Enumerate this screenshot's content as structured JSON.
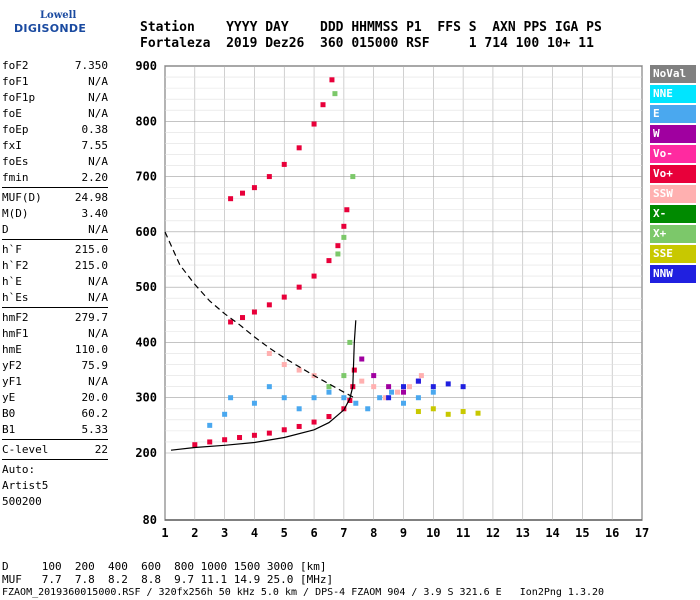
{
  "logo": {
    "line1": "Lowell",
    "line2": "DIGISONDE"
  },
  "header": {
    "labels": "Station    YYYY DAY    DDD HHMMSS P1  FFS S  AXN PPS IGA PS",
    "values": "Fortaleza  2019 Dez26  360 015000 RSF     1 714 100 10+ 11"
  },
  "params": [
    {
      "name": "foF2",
      "value": "7.350"
    },
    {
      "name": "foF1",
      "value": "N/A"
    },
    {
      "name": "foF1p",
      "value": "N/A"
    },
    {
      "name": "foE",
      "value": "N/A"
    },
    {
      "name": "foEp",
      "value": "0.38"
    },
    {
      "name": "fxI",
      "value": "7.55"
    },
    {
      "name": "foEs",
      "value": "N/A"
    },
    {
      "name": "fmin",
      "value": "2.20"
    },
    {
      "sep": true
    },
    {
      "name": "MUF(D)",
      "value": "24.98"
    },
    {
      "name": "M(D)",
      "value": "3.40"
    },
    {
      "name": "D",
      "value": "N/A"
    },
    {
      "sep": true
    },
    {
      "name": "h`F",
      "value": "215.0"
    },
    {
      "name": "h`F2",
      "value": "215.0"
    },
    {
      "name": "h`E",
      "value": "N/A"
    },
    {
      "name": "h`Es",
      "value": "N/A"
    },
    {
      "sep": true
    },
    {
      "name": "hmF2",
      "value": "279.7"
    },
    {
      "name": "hmF1",
      "value": "N/A"
    },
    {
      "name": "hmE",
      "value": "110.0"
    },
    {
      "name": "yF2",
      "value": "75.9"
    },
    {
      "name": "yF1",
      "value": "N/A"
    },
    {
      "name": "yE",
      "value": "20.0"
    },
    {
      "name": "B0",
      "value": "60.2"
    },
    {
      "name": "B1",
      "value": "5.33"
    },
    {
      "sep": true
    },
    {
      "name": "C-level",
      "value": "22"
    },
    {
      "sep": true
    },
    {
      "plain": "Auto:"
    },
    {
      "plain": "Artist5"
    },
    {
      "plain": "500200"
    }
  ],
  "legend": [
    {
      "label": "NoVal",
      "color": "#808080"
    },
    {
      "label": "NNE",
      "color": "#00e5ff"
    },
    {
      "label": "E",
      "color": "#4aa8ef"
    },
    {
      "label": "W",
      "color": "#a000a0"
    },
    {
      "label": "Vo-",
      "color": "#ff2aa0"
    },
    {
      "label": "Vo+",
      "color": "#e8003a"
    },
    {
      "label": "SSW",
      "color": "#ffb0b0"
    },
    {
      "label": "X-",
      "color": "#008a00"
    },
    {
      "label": "X+",
      "color": "#7cc86a"
    },
    {
      "label": "SSE",
      "color": "#c8c800"
    },
    {
      "label": "NNW",
      "color": "#2020e0"
    }
  ],
  "footer": {
    "line1": "D     100  200  400  600  800 1000 1500 3000 [km]",
    "line2": "MUF   7.7  7.8  8.2  8.8  9.7 11.1 14.9 25.0 [MHz]",
    "line3": "FZAOM_2019360015000.RSF / 320fx256h 50 kHz 5.0 km / DPS-4 FZAOM 904 / 3.9 S 321.6 E   Ion2Png 1.3.20"
  },
  "chart_data": {
    "type": "scatter",
    "xlim": [
      1,
      17
    ],
    "ylim": [
      80,
      900
    ],
    "xticks": [
      1,
      2,
      3,
      4,
      5,
      6,
      7,
      8,
      9,
      10,
      11,
      12,
      13,
      14,
      15,
      16,
      17
    ],
    "yticks": [
      80,
      200,
      300,
      400,
      500,
      600,
      700,
      800,
      900
    ],
    "grid": true,
    "series": [
      {
        "color": "#e8003a",
        "points": [
          [
            2,
            215
          ],
          [
            2.5,
            220
          ],
          [
            3,
            224
          ],
          [
            3.5,
            228
          ],
          [
            4,
            232
          ],
          [
            4.5,
            236
          ],
          [
            5,
            242
          ],
          [
            5.5,
            248
          ],
          [
            6,
            256
          ],
          [
            6.5,
            266
          ],
          [
            7,
            280
          ],
          [
            7.2,
            295
          ],
          [
            7.3,
            320
          ],
          [
            7.35,
            350
          ]
        ]
      },
      {
        "color": "#e8003a",
        "points": [
          [
            3.2,
            437
          ],
          [
            3.6,
            445
          ],
          [
            4,
            455
          ],
          [
            4.5,
            468
          ],
          [
            5,
            482
          ],
          [
            5.5,
            500
          ],
          [
            6,
            520
          ],
          [
            6.5,
            548
          ],
          [
            6.8,
            575
          ],
          [
            7,
            610
          ],
          [
            7.1,
            640
          ]
        ]
      },
      {
        "color": "#e8003a",
        "points": [
          [
            3.2,
            660
          ],
          [
            3.6,
            670
          ],
          [
            4,
            680
          ],
          [
            4.5,
            700
          ],
          [
            5,
            722
          ],
          [
            5.5,
            752
          ],
          [
            6,
            795
          ],
          [
            6.3,
            830
          ],
          [
            6.6,
            875
          ]
        ]
      },
      {
        "color": "#4aa8ef",
        "points": [
          [
            2.5,
            250
          ],
          [
            3,
            270
          ],
          [
            3.2,
            300
          ],
          [
            4,
            290
          ],
          [
            4.5,
            320
          ],
          [
            5,
            300
          ],
          [
            5.5,
            280
          ],
          [
            6,
            300
          ],
          [
            6.5,
            310
          ],
          [
            7,
            300
          ],
          [
            7.4,
            290
          ],
          [
            7.8,
            280
          ],
          [
            8.2,
            300
          ],
          [
            8.6,
            310
          ],
          [
            9,
            290
          ],
          [
            9.5,
            300
          ],
          [
            10,
            310
          ]
        ]
      },
      {
        "color": "#ffb0b0",
        "points": [
          [
            4.5,
            380
          ],
          [
            5,
            360
          ],
          [
            5.5,
            350
          ],
          [
            6,
            340
          ],
          [
            7.6,
            330
          ],
          [
            8,
            320
          ],
          [
            8.4,
            300
          ],
          [
            8.8,
            310
          ],
          [
            9.2,
            320
          ],
          [
            9.6,
            340
          ]
        ]
      },
      {
        "color": "#a000a0",
        "points": [
          [
            7.6,
            370
          ],
          [
            8,
            340
          ],
          [
            8.5,
            320
          ],
          [
            9,
            310
          ],
          [
            9.5,
            330
          ]
        ]
      },
      {
        "color": "#2020e0",
        "points": [
          [
            8.5,
            300
          ],
          [
            9,
            320
          ],
          [
            9.5,
            330
          ],
          [
            10,
            320
          ],
          [
            10.5,
            325
          ],
          [
            11,
            320
          ]
        ]
      },
      {
        "color": "#c8c800",
        "points": [
          [
            9.5,
            275
          ],
          [
            10,
            280
          ],
          [
            10.5,
            270
          ],
          [
            11,
            275
          ],
          [
            11.5,
            272
          ]
        ]
      },
      {
        "color": "#7cc86a",
        "points": [
          [
            6.5,
            320
          ],
          [
            7,
            340
          ],
          [
            7.2,
            400
          ],
          [
            6.8,
            560
          ],
          [
            7,
            590
          ],
          [
            7.3,
            700
          ],
          [
            6.7,
            850
          ]
        ]
      }
    ],
    "lines": [
      {
        "style": "dashed",
        "points": [
          [
            1,
            600
          ],
          [
            1.5,
            540
          ],
          [
            2,
            505
          ],
          [
            2.5,
            475
          ],
          [
            3,
            452
          ],
          [
            3.5,
            432
          ],
          [
            4,
            410
          ],
          [
            4.5,
            390
          ],
          [
            5,
            372
          ],
          [
            5.5,
            356
          ],
          [
            6,
            340
          ],
          [
            6.5,
            325
          ],
          [
            7,
            310
          ],
          [
            7.35,
            300
          ]
        ]
      },
      {
        "style": "solid",
        "points": [
          [
            1.2,
            205
          ],
          [
            2,
            210
          ],
          [
            3,
            214
          ],
          [
            4,
            219
          ],
          [
            5,
            228
          ],
          [
            6,
            242
          ],
          [
            6.5,
            255
          ],
          [
            7,
            278
          ],
          [
            7.2,
            298
          ],
          [
            7.3,
            320
          ],
          [
            7.35,
            400
          ],
          [
            7.4,
            440
          ]
        ]
      }
    ]
  }
}
